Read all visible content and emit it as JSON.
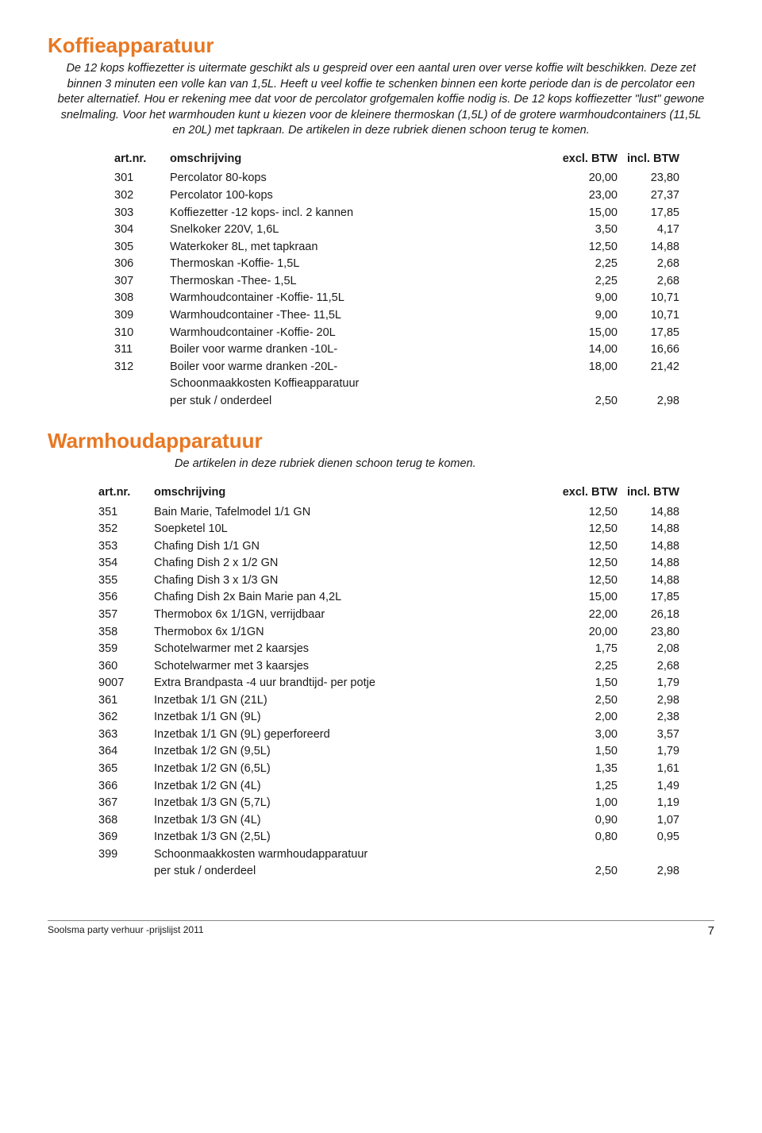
{
  "colors": {
    "accent": "#e87722",
    "text": "#1a1a1a",
    "rule": "#888888",
    "background": "#ffffff"
  },
  "typography": {
    "body_family": "Myriad Pro / Segoe UI / Arial",
    "body_size_pt": 11,
    "title_size_pt": 20,
    "title_weight": 700,
    "intro_style": "italic"
  },
  "section1": {
    "title": "Koffieapparatuur",
    "intro": "De 12 kops koffiezetter is uitermate geschikt als u gespreid over een aantal uren over verse koffie wilt beschikken. Deze zet binnen 3 minuten een volle kan van 1,5L. Heeft u veel koffie te schenken binnen een korte periode dan is de percolator een beter alternatief. Hou er rekening mee dat voor de percolator grofgemalen koffie nodig is. De 12 kops koffiezetter \"lust\" gewone snelmaling. Voor het warmhouden kunt u kiezen voor de kleinere thermoskan (1,5L) of de grotere warmhoudcontainers (11,5L en 20L) met tapkraan. De artikelen in deze rubriek dienen schoon terug te komen.",
    "headers": {
      "art": "art.nr.",
      "desc": "omschrijving",
      "excl": "excl. BTW",
      "incl": "incl. BTW"
    },
    "rows": [
      {
        "art": "301",
        "desc": "Percolator 80-kops",
        "excl": "20,00",
        "incl": "23,80"
      },
      {
        "art": "302",
        "desc": "Percolator 100-kops",
        "excl": "23,00",
        "incl": "27,37"
      },
      {
        "art": "303",
        "desc": "Koffiezetter -12 kops- incl. 2 kannen",
        "excl": "15,00",
        "incl": "17,85"
      },
      {
        "art": "304",
        "desc": "Snelkoker 220V, 1,6L",
        "excl": "3,50",
        "incl": "4,17"
      },
      {
        "art": "305",
        "desc": "Waterkoker 8L, met tapkraan",
        "excl": "12,50",
        "incl": "14,88"
      },
      {
        "art": "306",
        "desc": "Thermoskan -Koffie- 1,5L",
        "excl": "2,25",
        "incl": "2,68"
      },
      {
        "art": "307",
        "desc": "Thermoskan -Thee- 1,5L",
        "excl": "2,25",
        "incl": "2,68"
      },
      {
        "art": "308",
        "desc": "Warmhoudcontainer -Koffie- 11,5L",
        "excl": "9,00",
        "incl": "10,71"
      },
      {
        "art": "309",
        "desc": "Warmhoudcontainer -Thee- 11,5L",
        "excl": "9,00",
        "incl": "10,71"
      },
      {
        "art": "310",
        "desc": "Warmhoudcontainer -Koffie- 20L",
        "excl": "15,00",
        "incl": "17,85"
      },
      {
        "art": "311",
        "desc": "Boiler voor warme dranken -10L-",
        "excl": "14,00",
        "incl": "16,66"
      },
      {
        "art": "312",
        "desc": "Boiler voor warme dranken -20L-",
        "excl": "18,00",
        "incl": "21,42"
      },
      {
        "art": "",
        "desc": "Schoonmaakkosten Koffieapparatuur",
        "excl": "",
        "incl": ""
      },
      {
        "art": "",
        "desc": "per stuk / onderdeel",
        "excl": "2,50",
        "incl": "2,98"
      }
    ]
  },
  "section2": {
    "title": "Warmhoudapparatuur",
    "intro": "De artikelen in deze rubriek dienen schoon terug te komen.",
    "headers": {
      "art": "art.nr.",
      "desc": "omschrijving",
      "excl": "excl. BTW",
      "incl": "incl. BTW"
    },
    "rows": [
      {
        "art": "351",
        "desc": "Bain Marie, Tafelmodel 1/1 GN",
        "excl": "12,50",
        "incl": "14,88"
      },
      {
        "art": "352",
        "desc": "Soepketel 10L",
        "excl": "12,50",
        "incl": "14,88"
      },
      {
        "art": "353",
        "desc": "Chafing Dish 1/1 GN",
        "excl": "12,50",
        "incl": "14,88"
      },
      {
        "art": "354",
        "desc": "Chafing Dish 2 x 1/2 GN",
        "excl": "12,50",
        "incl": "14,88"
      },
      {
        "art": "355",
        "desc": "Chafing Dish 3 x 1/3 GN",
        "excl": "12,50",
        "incl": "14,88"
      },
      {
        "art": "356",
        "desc": "Chafing Dish 2x Bain Marie pan 4,2L",
        "excl": "15,00",
        "incl": "17,85"
      },
      {
        "art": "357",
        "desc": "Thermobox 6x 1/1GN, verrijdbaar",
        "excl": "22,00",
        "incl": "26,18"
      },
      {
        "art": "358",
        "desc": "Thermobox 6x 1/1GN",
        "excl": "20,00",
        "incl": "23,80"
      },
      {
        "art": "359",
        "desc": "Schotelwarmer met 2 kaarsjes",
        "excl": "1,75",
        "incl": "2,08"
      },
      {
        "art": "360",
        "desc": "Schotelwarmer met 3 kaarsjes",
        "excl": "2,25",
        "incl": "2,68"
      },
      {
        "art": "9007",
        "desc": "Extra Brandpasta -4 uur brandtijd- per potje",
        "excl": "1,50",
        "incl": "1,79"
      },
      {
        "art": "361",
        "desc": "Inzetbak 1/1 GN (21L)",
        "excl": "2,50",
        "incl": "2,98"
      },
      {
        "art": "362",
        "desc": "Inzetbak 1/1 GN (9L)",
        "excl": "2,00",
        "incl": "2,38"
      },
      {
        "art": "363",
        "desc": "Inzetbak 1/1 GN (9L) geperforeerd",
        "excl": "3,00",
        "incl": "3,57"
      },
      {
        "art": "364",
        "desc": "Inzetbak 1/2 GN (9,5L)",
        "excl": "1,50",
        "incl": "1,79"
      },
      {
        "art": "365",
        "desc": "Inzetbak 1/2 GN (6,5L)",
        "excl": "1,35",
        "incl": "1,61"
      },
      {
        "art": "366",
        "desc": "Inzetbak 1/2 GN (4L)",
        "excl": "1,25",
        "incl": "1,49"
      },
      {
        "art": "367",
        "desc": "Inzetbak 1/3 GN (5,7L)",
        "excl": "1,00",
        "incl": "1,19"
      },
      {
        "art": "368",
        "desc": "Inzetbak 1/3 GN (4L)",
        "excl": "0,90",
        "incl": "1,07"
      },
      {
        "art": "369",
        "desc": "Inzetbak 1/3 GN (2,5L)",
        "excl": "0,80",
        "incl": "0,95"
      },
      {
        "art": "399",
        "desc": "Schoonmaakkosten warmhoudapparatuur",
        "excl": "",
        "incl": ""
      },
      {
        "art": "",
        "desc": "per stuk / onderdeel",
        "excl": "2,50",
        "incl": "2,98"
      }
    ]
  },
  "footer": {
    "left": "Soolsma party verhuur -prijslijst 2011",
    "page": "7"
  }
}
